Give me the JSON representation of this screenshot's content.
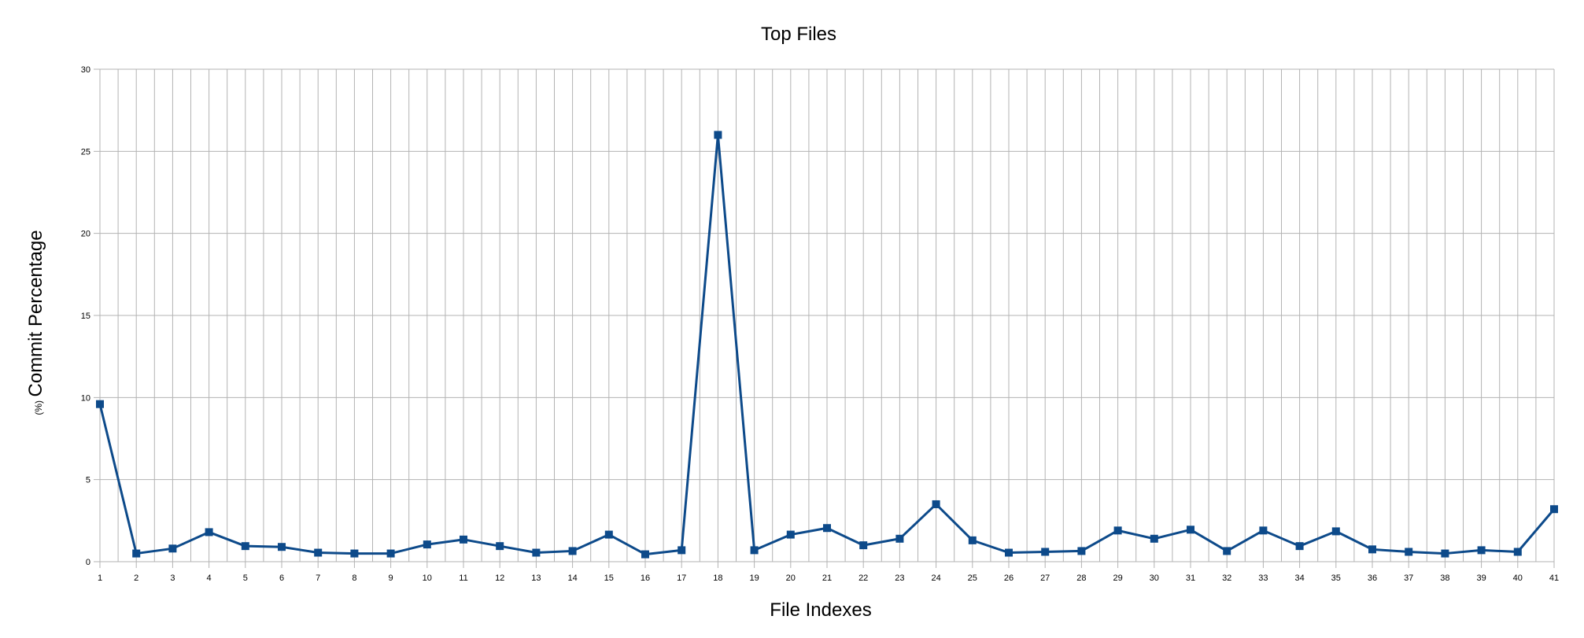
{
  "chart_data": {
    "type": "line",
    "title": "Top Files",
    "xlabel": "File Indexes",
    "ylabel": "Commit Percentage",
    "ylabel_unit": "(%)",
    "x": [
      1,
      2,
      3,
      4,
      5,
      6,
      7,
      8,
      9,
      10,
      11,
      12,
      13,
      14,
      15,
      16,
      17,
      18,
      19,
      20,
      21,
      22,
      23,
      24,
      25,
      26,
      27,
      28,
      29,
      30,
      31,
      32,
      33,
      34,
      35,
      36,
      37,
      38,
      39,
      40,
      41
    ],
    "series": [
      {
        "values": [
          9.6,
          0.5,
          0.8,
          1.8,
          0.95,
          0.9,
          0.55,
          0.5,
          0.5,
          1.05,
          1.35,
          0.95,
          0.55,
          0.65,
          1.65,
          0.45,
          0.7,
          26.0,
          0.7,
          1.65,
          2.05,
          1.0,
          1.4,
          3.5,
          1.3,
          0.55,
          0.6,
          0.65,
          1.9,
          1.4,
          1.95,
          0.65,
          1.9,
          0.95,
          1.85,
          0.75,
          0.6,
          0.5,
          0.7,
          0.6,
          3.2
        ],
        "color": "#0d4a8a"
      }
    ],
    "ylim": [
      0,
      30
    ],
    "yticks": [
      0,
      5,
      10,
      15,
      20,
      25,
      30
    ],
    "grid": true,
    "legend": "none"
  }
}
